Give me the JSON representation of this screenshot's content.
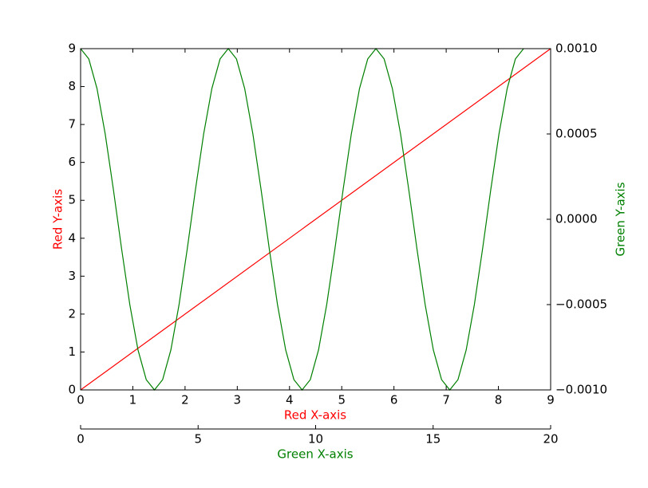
{
  "chart_data": {
    "type": "line",
    "xlabel": "Red X-axis",
    "ylabel": "Red Y-axis",
    "x2label": "Green X-axis",
    "y2label": "Green Y-axis",
    "xlim": [
      0,
      9
    ],
    "xticks": [
      0,
      1,
      2,
      3,
      4,
      5,
      6,
      7,
      8,
      9
    ],
    "ylim": [
      0,
      9
    ],
    "yticks": [
      0,
      1,
      2,
      3,
      4,
      5,
      6,
      7,
      8,
      9
    ],
    "x2lim": [
      0,
      20
    ],
    "x2ticks": [
      0,
      5,
      10,
      15,
      20
    ],
    "y2lim": [
      -0.001,
      0.001
    ],
    "y2ticks": [
      {
        "value": -0.001,
        "label": "−0.0010"
      },
      {
        "value": -0.0005,
        "label": "−0.0005"
      },
      {
        "value": 0,
        "label": "0.0000"
      },
      {
        "value": 0.0005,
        "label": "0.0005"
      },
      {
        "value": 0.001,
        "label": "0.0010"
      }
    ],
    "series": [
      {
        "color": "#ff0000",
        "axis": "y",
        "x": [
          0,
          9
        ],
        "values": [
          0,
          9
        ]
      },
      {
        "color": "#008000",
        "axis": "y2",
        "x": [
          0,
          0.349,
          0.698,
          1.047,
          1.396,
          1.745,
          2.094,
          2.443,
          2.793,
          3.142,
          3.491,
          3.84,
          4.189,
          4.538,
          4.887,
          5.236,
          5.585,
          5.934,
          6.283,
          6.632,
          6.981,
          7.33,
          7.679,
          8.029,
          8.378,
          8.727,
          9.076,
          9.425,
          9.774,
          10.123,
          10.472,
          10.821,
          11.17,
          11.519,
          11.868,
          12.217,
          12.566,
          12.915,
          13.265,
          13.614,
          13.963,
          14.312,
          14.661,
          15.01,
          15.359,
          15.708,
          16.057,
          16.406,
          16.755,
          17.104,
          17.453,
          17.802,
          18.151,
          18.5,
          18.85
        ],
        "values": [
          0.001,
          0.00093969,
          0.00076604,
          0.0005,
          0.00017365,
          -0.00017365,
          -0.0005,
          -0.00076604,
          -0.00093969,
          -0.001,
          -0.00093969,
          -0.00076604,
          -0.0005,
          -0.00017365,
          0.00017365,
          0.0005,
          0.00076604,
          0.00093969,
          0.001,
          0.00093969,
          0.00076604,
          0.0005,
          0.00017365,
          -0.00017365,
          -0.0005,
          -0.00076604,
          -0.00093969,
          -0.001,
          -0.00093969,
          -0.00076604,
          -0.0005,
          -0.00017365,
          0.00017365,
          0.0005,
          0.00076604,
          0.00093969,
          0.001,
          0.00093969,
          0.00076604,
          0.0005,
          0.00017365,
          -0.00017365,
          -0.0005,
          -0.00076604,
          -0.00093969,
          -0.001,
          -0.00093969,
          -0.00076604,
          -0.0005,
          -0.00017365,
          0.00017365,
          0.0005,
          0.00076604,
          0.00093969,
          0.001
        ]
      }
    ]
  }
}
